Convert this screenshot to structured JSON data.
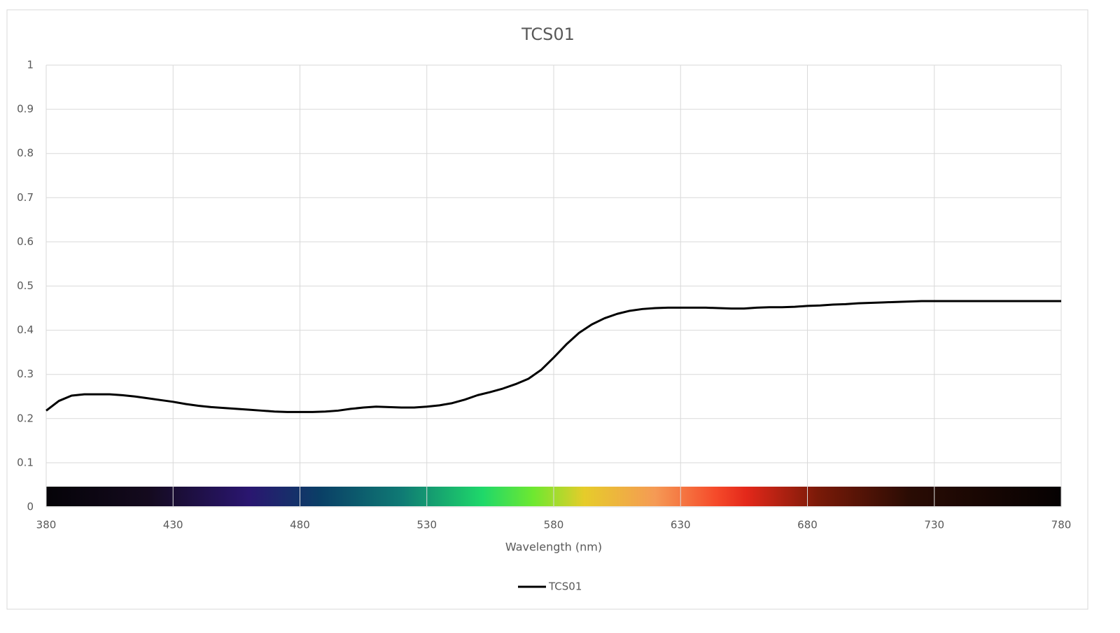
{
  "chart_data": {
    "type": "line",
    "title": "TCS01",
    "x_label": "Wavelength (nm)",
    "x": [
      380,
      385,
      390,
      395,
      400,
      405,
      410,
      415,
      420,
      425,
      430,
      435,
      440,
      445,
      450,
      455,
      460,
      465,
      470,
      475,
      480,
      485,
      490,
      495,
      500,
      505,
      510,
      515,
      520,
      525,
      530,
      535,
      540,
      545,
      550,
      555,
      560,
      565,
      570,
      575,
      580,
      585,
      590,
      595,
      600,
      605,
      610,
      615,
      620,
      625,
      630,
      635,
      640,
      645,
      650,
      655,
      660,
      665,
      670,
      675,
      680,
      685,
      690,
      695,
      700,
      705,
      710,
      715,
      720,
      725,
      730,
      735,
      740,
      745,
      750,
      755,
      760,
      765,
      770,
      775,
      780
    ],
    "series": [
      {
        "name": "TCS01",
        "color": "#000000",
        "values": [
          0.218,
          0.24,
          0.252,
          0.255,
          0.255,
          0.255,
          0.253,
          0.25,
          0.246,
          0.242,
          0.238,
          0.233,
          0.229,
          0.226,
          0.224,
          0.222,
          0.22,
          0.218,
          0.216,
          0.215,
          0.215,
          0.215,
          0.216,
          0.218,
          0.222,
          0.225,
          0.227,
          0.226,
          0.225,
          0.225,
          0.227,
          0.23,
          0.235,
          0.243,
          0.253,
          0.26,
          0.268,
          0.278,
          0.29,
          0.31,
          0.338,
          0.368,
          0.394,
          0.413,
          0.427,
          0.437,
          0.444,
          0.448,
          0.45,
          0.451,
          0.451,
          0.451,
          0.451,
          0.45,
          0.449,
          0.449,
          0.451,
          0.452,
          0.452,
          0.453,
          0.455,
          0.456,
          0.458,
          0.459,
          0.461,
          0.462,
          0.463,
          0.464,
          0.465,
          0.466,
          0.466,
          0.466,
          0.466,
          0.466,
          0.466,
          0.466,
          0.466,
          0.466,
          0.466,
          0.466,
          0.466
        ]
      }
    ],
    "xlim": [
      380,
      780
    ],
    "xticks": [
      380,
      430,
      480,
      530,
      580,
      630,
      680,
      730,
      780
    ],
    "ylim": [
      0,
      1
    ],
    "yticks": [
      0,
      0.1,
      0.2,
      0.3,
      0.4,
      0.5,
      0.6,
      0.7,
      0.8,
      0.9,
      1
    ],
    "grid": true,
    "legend": "bottom"
  }
}
